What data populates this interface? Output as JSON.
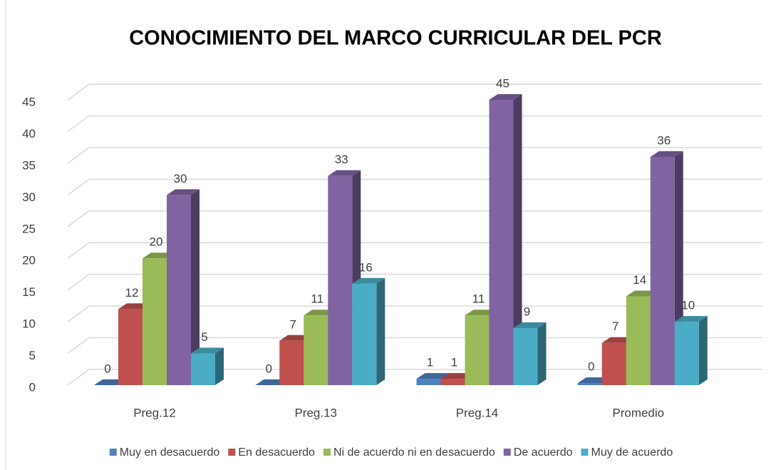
{
  "chart_data": {
    "type": "bar3d",
    "title": "CONOCIMIENTO DEL MARCO CURRICULAR DEL PCR",
    "categories": [
      "Preg.12",
      "Preg.13",
      "Preg.14",
      "Promedio"
    ],
    "series": [
      {
        "name": "Muy en desacuerdo",
        "color": "#4f81bd",
        "values": [
          0,
          0,
          1,
          0.33
        ],
        "value_labels": [
          "0",
          "0",
          "1",
          "0"
        ]
      },
      {
        "name": "En desacuerdo",
        "color": "#c0504d",
        "values": [
          12,
          7,
          1,
          6.67
        ],
        "value_labels": [
          "12",
          "7",
          "1",
          "7"
        ]
      },
      {
        "name": "Ni de acuerdo ni en desacuerdo",
        "color": "#9bbb59",
        "values": [
          20,
          11,
          11,
          14
        ]
      },
      {
        "name": "De acuerdo",
        "color": "#8064a2",
        "values": [
          30,
          33,
          45,
          36
        ]
      },
      {
        "name": "Muy de acuerdo",
        "color": "#4bacc6",
        "values": [
          5,
          16,
          9,
          10
        ]
      }
    ],
    "ylim": [
      0,
      45
    ],
    "yticks": [
      0,
      5,
      10,
      15,
      20,
      25,
      30,
      35,
      40,
      45
    ],
    "grid": true,
    "legend": "bottom"
  }
}
